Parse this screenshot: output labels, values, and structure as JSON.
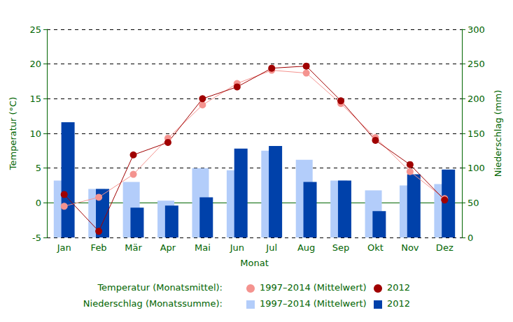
{
  "chart_data": {
    "type": "bar",
    "xlabel": "Monat",
    "ylabel": "Temperatur (°C)",
    "y2label": "Niederschlag (mm)",
    "categories": [
      "Jan",
      "Feb",
      "Mär",
      "Apr",
      "Mai",
      "Jun",
      "Jul",
      "Aug",
      "Sep",
      "Okt",
      "Nov",
      "Dez"
    ],
    "annotations": [
      "Temperatur (Monatsmittel):",
      "Niederschlag (Monatssumme):"
    ],
    "series": [
      {
        "name": "1997–2014 (Mittelwert)",
        "type": "line",
        "marker": "circle",
        "color": "#f4938f",
        "values": [
          -0.5,
          0.8,
          4.1,
          9.3,
          14.1,
          17.2,
          19.1,
          18.7,
          14.3,
          9.4,
          4.5,
          0.6
        ]
      },
      {
        "name": "2012",
        "type": "line",
        "marker": "circle",
        "color": "#a00000",
        "values": [
          1.2,
          -4.1,
          6.9,
          8.7,
          15.0,
          16.7,
          19.4,
          19.7,
          14.7,
          9.0,
          5.5,
          0.4
        ]
      },
      {
        "name": "1997–2014 (Mittelwert)",
        "type": "bar",
        "axis": "y2",
        "color": "#b3cdfa",
        "values": [
          82,
          70,
          80,
          53,
          100,
          97,
          125,
          112,
          82,
          68,
          75,
          77
        ]
      },
      {
        "name": "2012",
        "type": "bar",
        "axis": "y2",
        "color": "#0041aa",
        "values": [
          166,
          70,
          43,
          46,
          58,
          128,
          132,
          80,
          82,
          38,
          91,
          98
        ]
      }
    ],
    "ylim": [
      -5,
      25
    ],
    "yticks": [
      -5,
      0,
      5,
      10,
      15,
      20,
      25
    ],
    "y2lim": [
      0,
      300
    ],
    "y2ticks": [
      0,
      50,
      100,
      150,
      200,
      250,
      300
    ],
    "grid": true
  }
}
